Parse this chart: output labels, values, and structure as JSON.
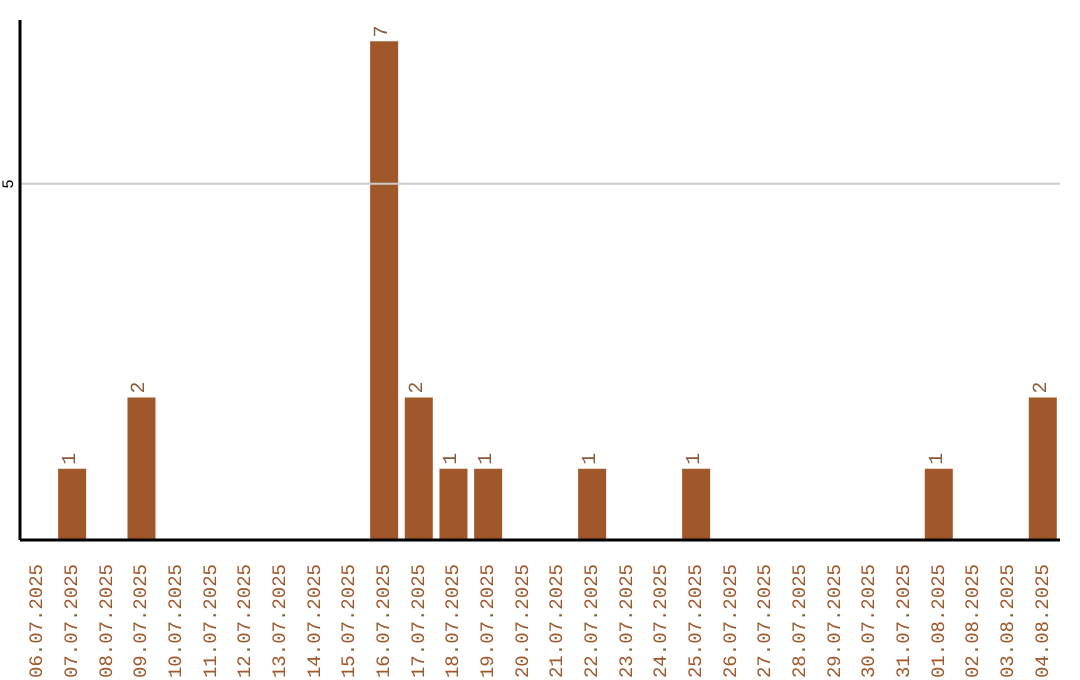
{
  "chart_data": {
    "type": "bar",
    "categories": [
      "06.07.2025",
      "07.07.2025",
      "08.07.2025",
      "09.07.2025",
      "10.07.2025",
      "11.07.2025",
      "12.07.2025",
      "13.07.2025",
      "14.07.2025",
      "15.07.2025",
      "16.07.2025",
      "17.07.2025",
      "18.07.2025",
      "19.07.2025",
      "20.07.2025",
      "21.07.2025",
      "22.07.2025",
      "23.07.2025",
      "24.07.2025",
      "25.07.2025",
      "26.07.2025",
      "27.07.2025",
      "28.07.2025",
      "29.07.2025",
      "30.07.2025",
      "31.07.2025",
      "01.08.2025",
      "02.08.2025",
      "03.08.2025",
      "04.08.2025"
    ],
    "values": [
      0,
      1,
      0,
      2,
      0,
      0,
      0,
      0,
      0,
      0,
      7,
      2,
      1,
      1,
      0,
      0,
      1,
      0,
      0,
      1,
      0,
      0,
      0,
      0,
      0,
      0,
      1,
      0,
      0,
      2
    ],
    "value_labels": [
      null,
      "1",
      null,
      "2",
      null,
      null,
      null,
      null,
      null,
      null,
      "7",
      "2",
      "1",
      "1",
      null,
      null,
      "1",
      null,
      null,
      "1",
      null,
      null,
      null,
      null,
      null,
      null,
      "1",
      null,
      null,
      "2"
    ],
    "color": "#a0572a",
    "ylim": [
      0,
      7.3
    ],
    "yticks": [
      5
    ],
    "grid": "y"
  }
}
